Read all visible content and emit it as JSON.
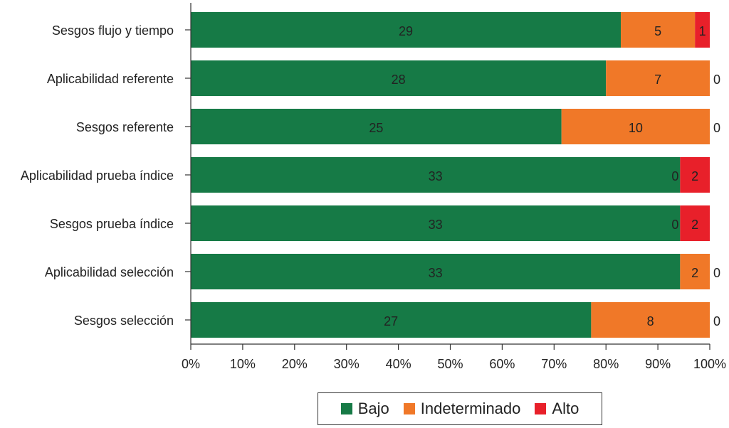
{
  "chart_data": {
    "type": "bar",
    "orientation": "horizontal",
    "stacked": "percent",
    "categories": [
      "Sesgos flujo y tiempo",
      "Aplicabilidad referente",
      "Sesgos referente",
      "Aplicabilidad prueba índice",
      "Sesgos prueba índice",
      "Aplicabilidad selección",
      "Sesgos selección"
    ],
    "series": [
      {
        "name": "Bajo",
        "color": "#167a46",
        "values": [
          29,
          28,
          25,
          33,
          33,
          33,
          27
        ]
      },
      {
        "name": "Indeterminado",
        "color": "#f07828",
        "values": [
          5,
          7,
          10,
          0,
          0,
          2,
          8
        ]
      },
      {
        "name": "Alto",
        "color": "#e8202a",
        "values": [
          1,
          0,
          0,
          2,
          2,
          0,
          0
        ]
      }
    ],
    "xlim": [
      0,
      100
    ],
    "xticks": [
      "0%",
      "10%",
      "20%",
      "30%",
      "40%",
      "50%",
      "60%",
      "70%",
      "80%",
      "90%",
      "100%"
    ],
    "title": "",
    "xlabel": "",
    "ylabel": "",
    "grid": false,
    "legend_position": "bottom"
  }
}
